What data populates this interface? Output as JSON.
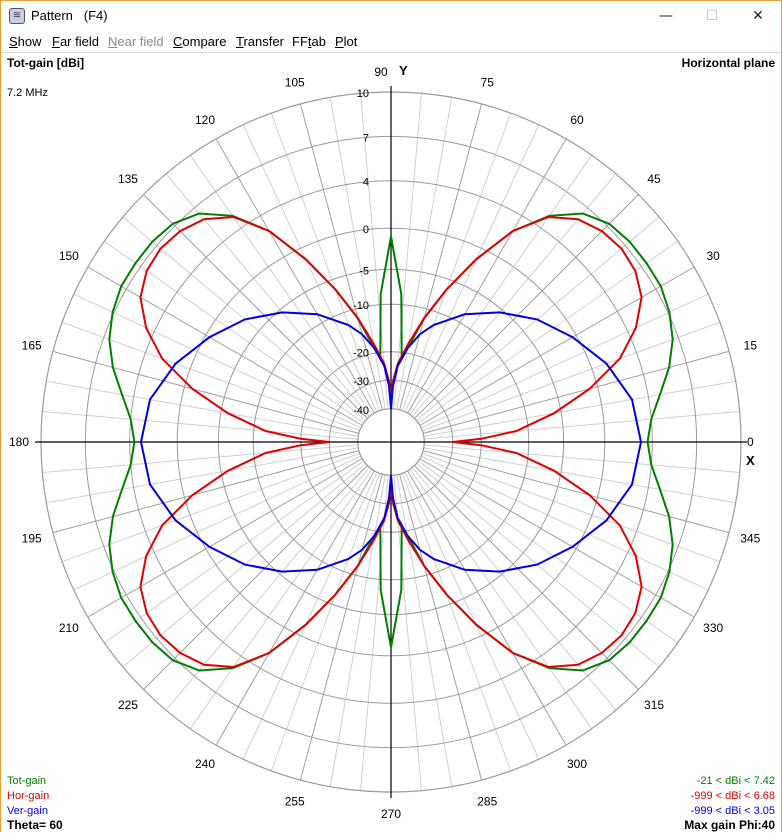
{
  "window": {
    "title": "Pattern   (F4)",
    "icon": "antenna-app-icon",
    "controls": {
      "minimize": "—",
      "maximize": "☐",
      "close": "✕"
    }
  },
  "menu": [
    {
      "label": "Show",
      "accel": "S",
      "enabled": true
    },
    {
      "label": "Far field",
      "accel": "F",
      "enabled": true
    },
    {
      "label": "Near field",
      "accel": "N",
      "enabled": false
    },
    {
      "label": "Compare",
      "accel": "C",
      "enabled": true
    },
    {
      "label": "Transfer",
      "accel": "T",
      "enabled": true
    },
    {
      "label": "FFtab",
      "accel": "t",
      "enabled": true
    },
    {
      "label": "Plot",
      "accel": "P",
      "enabled": true
    }
  ],
  "plot": {
    "top_left": "Tot-gain [dBi]",
    "top_right": "Horizontal plane",
    "frequency": "7.2 MHz",
    "axis_y": "Y",
    "axis_x": "X",
    "bottom_left": "Theta= 60",
    "bottom_right": "Max gain Phi:40",
    "legend": [
      {
        "name": "Tot-gain",
        "range": "-21 < dBi < 7.42",
        "color": "#008000"
      },
      {
        "name": "Hor-gain",
        "range": "-999 < dBi < 6.68",
        "color": "#e00000"
      },
      {
        "name": "Ver-gain",
        "range": "-999 < dBi < 3.05",
        "color": "#0000e0"
      }
    ]
  },
  "chart_data": {
    "type": "polar",
    "angle_unit": "deg",
    "angle_labels": [
      "0",
      "15",
      "30",
      "45",
      "60",
      "75",
      "90",
      "105",
      "120",
      "135",
      "150",
      "165",
      "180",
      "195",
      "210",
      "225",
      "240",
      "255",
      "270",
      "285",
      "300",
      "315",
      "330",
      "345"
    ],
    "radial_labels": [
      "10",
      "7",
      "4",
      "0",
      "-5",
      "-10",
      "-20",
      "-30",
      "-40"
    ],
    "radial_ticks_dbi": [
      10,
      7,
      4,
      0,
      -5,
      -10,
      -20,
      -30,
      -40
    ],
    "radial_ticks_norm": [
      1.0,
      0.86,
      0.72,
      0.57,
      0.44,
      0.33,
      0.18,
      0.09,
      0.0
    ],
    "series": [
      {
        "name": "Tot-gain",
        "color": "#008000",
        "phi_deg": [
          0,
          5,
          10,
          15,
          20,
          25,
          30,
          35,
          40,
          45,
          50,
          55,
          60,
          65,
          70,
          75,
          80,
          83,
          86,
          90
        ],
        "gain_dbi": [
          3.6,
          4.0,
          4.8,
          5.8,
          6.6,
          7.1,
          7.4,
          7.42,
          7.4,
          7.2,
          6.5,
          5.0,
          2.5,
          -1.5,
          -6.5,
          -12,
          -19,
          -21,
          -8.5,
          -1
        ]
      },
      {
        "name": "Hor-gain",
        "color": "#e00000",
        "phi_deg": [
          0,
          2,
          5,
          10,
          15,
          20,
          25,
          30,
          35,
          40,
          45,
          50,
          55,
          60,
          65,
          70,
          75,
          80,
          85,
          88,
          90
        ],
        "gain_dbi": [
          -30,
          -20,
          -12.5,
          -6,
          -1,
          2.5,
          4.6,
          5.9,
          6.5,
          6.68,
          6.5,
          6.0,
          4.9,
          2.5,
          -1.5,
          -6.5,
          -12,
          -18,
          -24,
          -30,
          -35
        ]
      },
      {
        "name": "Ver-gain",
        "color": "#0000e0",
        "phi_deg": [
          0,
          10,
          20,
          30,
          40,
          50,
          60,
          70,
          75,
          80,
          85,
          88,
          90
        ],
        "gain_dbi": [
          3.05,
          2.6,
          1.3,
          -0.5,
          -2.8,
          -5.5,
          -8.6,
          -12.8,
          -15.5,
          -19,
          -25,
          -32,
          -40
        ]
      }
    ]
  }
}
